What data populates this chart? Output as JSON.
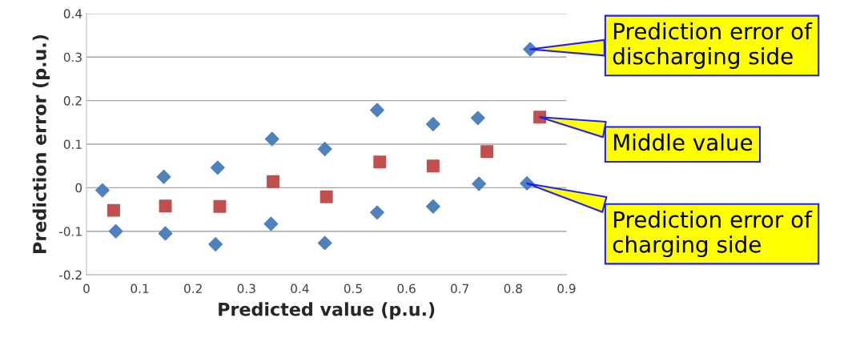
{
  "chart_data": {
    "type": "scatter",
    "xlabel": "Predicted value (p.u.)",
    "ylabel": "Prediction error (p.u.)",
    "series": [
      {
        "color": "#4f81bd",
        "marker": "diamond",
        "x": [
          0.03,
          0.055,
          0.145,
          0.148,
          0.246,
          0.242,
          0.348,
          0.346,
          0.447,
          0.447,
          0.545,
          0.545,
          0.65,
          0.65,
          0.734,
          0.736,
          0.832,
          0.826
        ],
        "values": [
          -0.006,
          -0.1,
          0.025,
          -0.105,
          0.046,
          -0.13,
          0.112,
          -0.083,
          0.089,
          -0.127,
          0.178,
          -0.057,
          0.146,
          -0.043,
          0.16,
          0.009,
          0.318,
          0.01
        ]
      },
      {
        "color": "#c0504d",
        "marker": "square",
        "x": [
          0.051,
          0.148,
          0.25,
          0.35,
          0.45,
          0.55,
          0.65,
          0.751,
          0.85
        ],
        "values": [
          -0.052,
          -0.042,
          -0.043,
          0.014,
          -0.021,
          0.059,
          0.05,
          0.083,
          0.162
        ]
      }
    ],
    "xlim": [
      0,
      0.9
    ],
    "xticks": [
      0,
      0.1,
      0.2,
      0.3,
      0.4,
      0.5,
      0.6,
      0.7,
      0.8,
      0.9
    ],
    "ylim": [
      -0.2,
      0.4
    ],
    "yticks": [
      -0.2,
      -0.1,
      0,
      0.1,
      0.2,
      0.3,
      0.4
    ],
    "grid": "y",
    "legend": false,
    "annotations": [
      {
        "text": "Prediction error of\ndischarging side",
        "x": 0.832,
        "y": 0.318
      },
      {
        "text": "Middle value",
        "x": 0.85,
        "y": 0.162
      },
      {
        "text": "Prediction error of\ncharging side",
        "x": 0.826,
        "y": 0.01
      }
    ]
  }
}
